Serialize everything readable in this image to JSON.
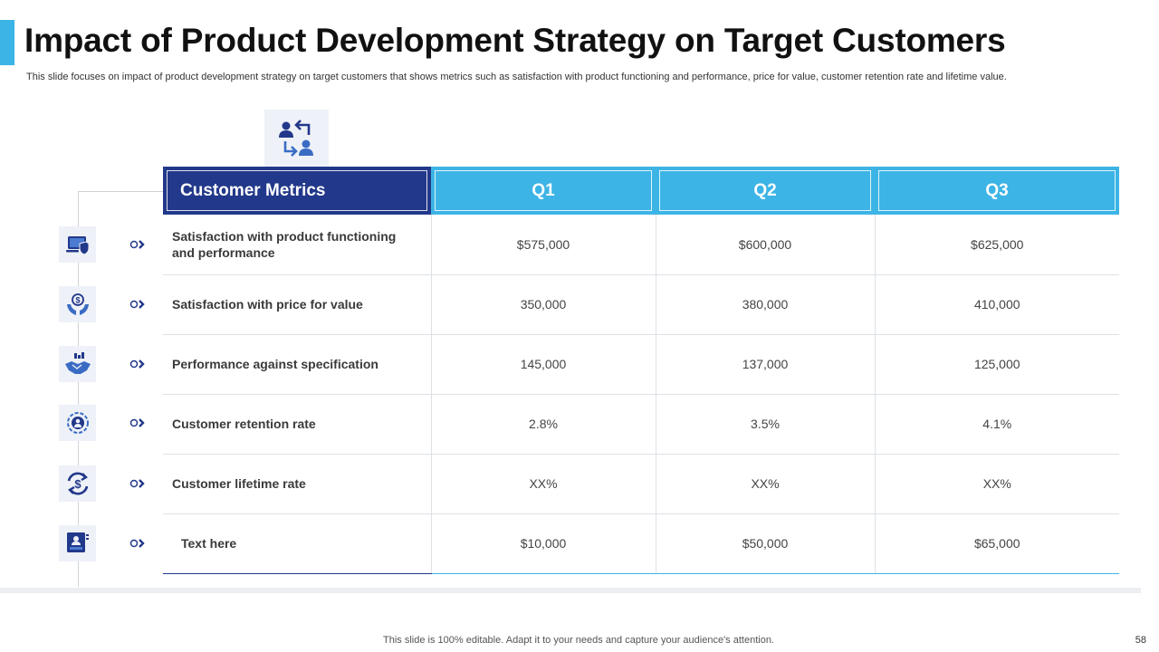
{
  "slide": {
    "title": "Impact of Product Development Strategy on Target Customers",
    "subtitle": "This slide focuses on impact of product development strategy on target customers that shows metrics such as satisfaction with product functioning and performance, price for value, customer retention rate and lifetime value.",
    "footer": "This slide is 100% editable. Adapt it to your needs and capture your audience's attention.",
    "page_number": "58"
  },
  "colors": {
    "navy": "#22388a",
    "accent": "#3cb4e6",
    "icon_bg": "#eef1f7"
  },
  "header_icon": "customer-exchange-icon",
  "table": {
    "headers": [
      "Customer Metrics",
      "Q1",
      "Q2",
      "Q3"
    ],
    "rows": [
      {
        "metric": "Satisfaction with product functioning and performance",
        "icon": "laptop-shield-icon",
        "values": [
          "$575,000",
          "$600,000",
          "$625,000"
        ]
      },
      {
        "metric": "Satisfaction with price for value",
        "icon": "dollar-hands-icon",
        "values": [
          "350,000",
          "380,000",
          "410,000"
        ]
      },
      {
        "metric": "Performance against specification",
        "icon": "handshake-icon",
        "values": [
          "145,000",
          "137,000",
          "125,000"
        ]
      },
      {
        "metric": "Customer retention rate",
        "icon": "retention-badge-icon",
        "values": [
          "2.8%",
          "3.5%",
          "4.1%"
        ]
      },
      {
        "metric": "Customer lifetime rate",
        "icon": "dollar-cycle-icon",
        "values": [
          "XX%",
          "XX%",
          "XX%"
        ]
      },
      {
        "metric": "Text here",
        "icon": "presentation-user-icon",
        "values": [
          "$10,000",
          "$50,000",
          "$65,000"
        ]
      }
    ]
  }
}
